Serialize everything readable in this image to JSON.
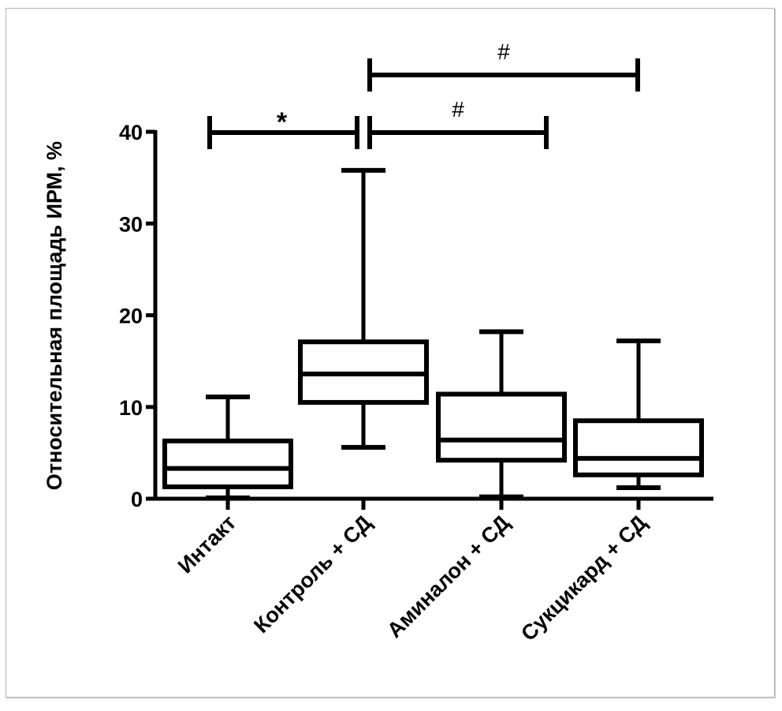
{
  "chart_data": {
    "type": "boxplot",
    "title": "",
    "xlabel": "",
    "ylabel": "Относительная площадь ИРМ, %",
    "ylim": [
      0,
      40
    ],
    "yticks": [
      0,
      10,
      20,
      30,
      40
    ],
    "ytick_labels": [
      "0",
      "10",
      "20",
      "30",
      "40"
    ],
    "grid": false,
    "categories": [
      "Интакт",
      "Контроль + СД",
      "Аминалон + СД",
      "Сукцикард + СД"
    ],
    "series": [
      {
        "name": "Интакт",
        "min": 0.1,
        "q1": 1.3,
        "median": 3.3,
        "q3": 6.3,
        "max": 11.1
      },
      {
        "name": "Контроль + СД",
        "min": 5.6,
        "q1": 10.5,
        "median": 13.6,
        "q3": 17.1,
        "max": 35.8
      },
      {
        "name": "Аминалон + СД",
        "min": 0.2,
        "q1": 4.2,
        "median": 6.4,
        "q3": 11.4,
        "max": 18.2
      },
      {
        "name": "Сукцикард + СД",
        "min": 1.2,
        "q1": 2.6,
        "median": 4.4,
        "q3": 8.5,
        "max": 17.2
      }
    ],
    "significance": [
      {
        "from": 0,
        "to": 1,
        "label": "*",
        "level": 1
      },
      {
        "from": 1,
        "to": 2,
        "label": "#",
        "level": 1
      },
      {
        "from": 1,
        "to": 3,
        "label": "#",
        "level": 2
      }
    ],
    "colors": {
      "stroke": "#000000",
      "frame": "#b4b4b4",
      "background": "#ffffff"
    }
  }
}
